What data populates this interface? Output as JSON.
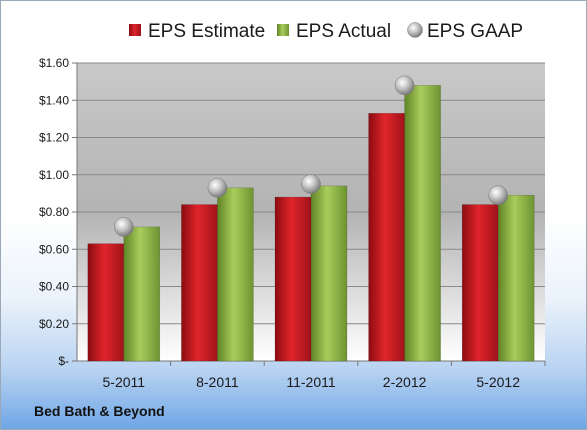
{
  "company": "Bed Bath & Beyond",
  "chart_data": {
    "type": "bar",
    "categories": [
      "5-2011",
      "8-2011",
      "11-2011",
      "2-2012",
      "5-2012"
    ],
    "series": [
      {
        "name": "EPS Estimate",
        "kind": "bar",
        "color": "#c8161d",
        "values": [
          0.63,
          0.84,
          0.88,
          1.33,
          0.84
        ]
      },
      {
        "name": "EPS Actual",
        "kind": "bar",
        "color": "#8db540",
        "values": [
          0.72,
          0.93,
          0.94,
          1.48,
          0.89
        ]
      },
      {
        "name": "EPS GAAP",
        "kind": "marker",
        "color": "#b8b8b8",
        "values": [
          0.72,
          0.93,
          0.95,
          1.48,
          0.89
        ]
      }
    ],
    "ylim": [
      0,
      1.6
    ],
    "yticks": [
      0,
      0.2,
      0.4,
      0.6,
      0.8,
      1.0,
      1.2,
      1.4,
      1.6
    ],
    "ytick_labels": [
      "$-",
      "$0.20",
      "$0.40",
      "$0.60",
      "$0.80",
      "$1.00",
      "$1.20",
      "$1.40",
      "$1.60"
    ],
    "grid": true,
    "legend": "top"
  }
}
